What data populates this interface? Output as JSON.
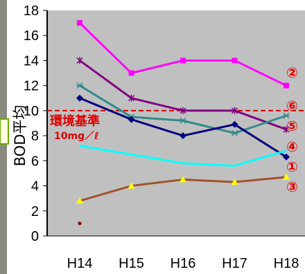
{
  "chart_data": {
    "type": "line",
    "title": "",
    "xlabel": "",
    "ylabel": "BOD平均",
    "categories": [
      "H14",
      "H15",
      "H16",
      "H17",
      "H18"
    ],
    "ylim": [
      0,
      18
    ],
    "yticks": [
      0,
      2,
      4,
      6,
      8,
      10,
      12,
      14,
      16,
      18
    ],
    "grid": false,
    "background": "#c0c0c0",
    "series": [
      {
        "name": "②",
        "color": "#ff00ff",
        "marker": "square",
        "values": [
          17,
          13,
          14,
          14,
          12
        ]
      },
      {
        "name": "⑥",
        "color": "#800080",
        "marker": "star",
        "values": [
          14,
          11,
          10,
          10,
          8.5
        ]
      },
      {
        "name": "⑤",
        "color": "#2e8b8b",
        "marker": "cross",
        "values": [
          12,
          9.5,
          9.2,
          8.2,
          9.6
        ]
      },
      {
        "name": "④",
        "color": "#000080",
        "marker": "diamond",
        "values": [
          11,
          9.3,
          8.0,
          8.9,
          6.3
        ]
      },
      {
        "name": "①",
        "color": "#00ffff",
        "marker": "none",
        "values": [
          7.2,
          6.5,
          5.8,
          5.6,
          6.8
        ]
      },
      {
        "name": "③",
        "color": "#a0522d",
        "marker": "triangle",
        "values": [
          2.8,
          4.0,
          4.5,
          4.3,
          4.7
        ]
      }
    ],
    "extra_points": [
      {
        "x": "H14",
        "y": 1.0,
        "color": "#800000"
      }
    ],
    "reference_line": {
      "value": 10,
      "color": "#e00000",
      "label": "環境基準",
      "sublabel": "10mg／ℓ"
    }
  }
}
